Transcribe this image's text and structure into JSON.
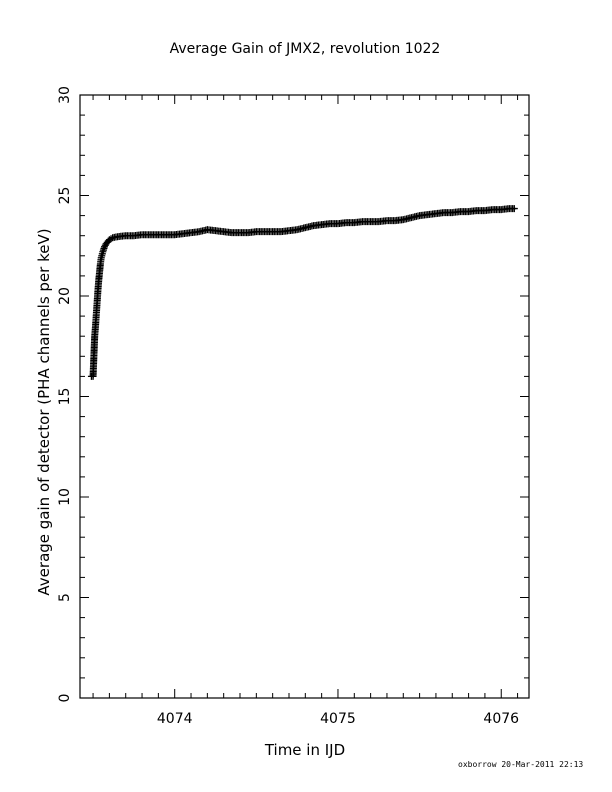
{
  "chart_data": {
    "type": "scatter",
    "title": "Average Gain of JMX2, revolution 1022",
    "xlabel": "Time in IJD",
    "ylabel": "Average gain of detector (PHA channels per keV)",
    "xlim": [
      4073.42,
      4076.17
    ],
    "ylim": [
      0,
      30
    ],
    "x_ticks": [
      4074,
      4075,
      4076
    ],
    "x_tick_labels": [
      "4074",
      "4075",
      "4076"
    ],
    "y_ticks": [
      0,
      5,
      10,
      15,
      20,
      25,
      30
    ],
    "y_tick_labels": [
      "0",
      "5",
      "10",
      "15",
      "20",
      "25",
      "30"
    ],
    "marker": "plus",
    "series": [
      {
        "x": [
          4073.49,
          4073.5,
          4073.51,
          4073.515,
          4073.52,
          4073.525,
          4073.53,
          4073.535,
          4073.54,
          4073.545,
          4073.55,
          4073.56,
          4073.57,
          4073.58,
          4073.6,
          4073.62,
          4073.65,
          4073.7,
          4073.75,
          4073.8,
          4073.85,
          4073.9,
          4073.95,
          4074.0,
          4074.05,
          4074.1,
          4074.15,
          4074.2,
          4074.25,
          4074.3,
          4074.35,
          4074.4,
          4074.45,
          4074.5,
          4074.55,
          4074.6,
          4074.65,
          4074.7,
          4074.75,
          4074.8,
          4074.85,
          4074.9,
          4074.95,
          4075.0,
          4075.05,
          4075.1,
          4075.15,
          4075.2,
          4075.25,
          4075.3,
          4075.35,
          4075.4,
          4075.45,
          4075.5,
          4075.55,
          4075.6,
          4075.65,
          4075.7,
          4075.75,
          4075.8,
          4075.85,
          4075.9,
          4075.95,
          4076.0,
          4076.05,
          4076.08
        ],
        "y": [
          16.0,
          16.0,
          18.0,
          18.5,
          19.1,
          19.7,
          20.3,
          20.8,
          21.2,
          21.6,
          21.9,
          22.2,
          22.45,
          22.6,
          22.8,
          22.9,
          22.95,
          23.0,
          23.0,
          23.05,
          23.05,
          23.05,
          23.05,
          23.05,
          23.1,
          23.15,
          23.2,
          23.3,
          23.25,
          23.2,
          23.15,
          23.15,
          23.15,
          23.2,
          23.2,
          23.2,
          23.2,
          23.25,
          23.3,
          23.4,
          23.5,
          23.55,
          23.6,
          23.6,
          23.65,
          23.65,
          23.7,
          23.7,
          23.7,
          23.75,
          23.75,
          23.8,
          23.9,
          24.0,
          24.05,
          24.1,
          24.15,
          24.15,
          24.2,
          24.2,
          24.25,
          24.25,
          24.3,
          24.3,
          24.35,
          24.35
        ]
      }
    ],
    "grid": false,
    "legend": "none"
  },
  "footer": "oxborrow 20-Mar-2011 22:13"
}
